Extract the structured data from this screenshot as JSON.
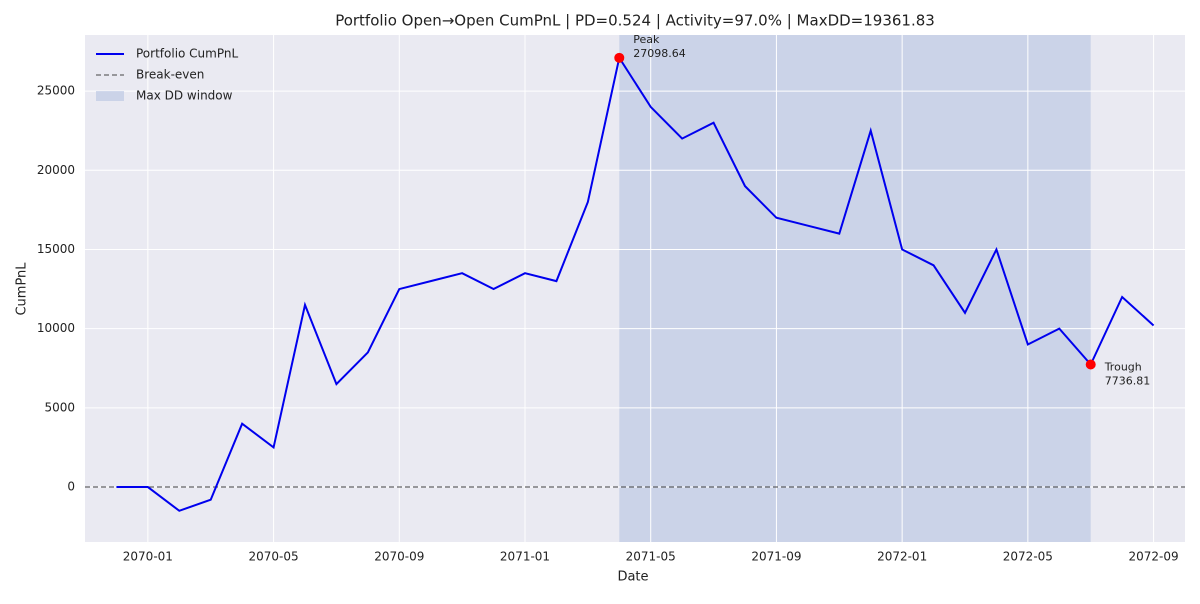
{
  "chart_data": {
    "type": "line",
    "title": "Portfolio Open→Open CumPnL | PD=0.524 | Activity=97.0% | MaxDD=19361.83",
    "x_label": "Date",
    "y_label": "CumPnL",
    "x": [
      "2069-12",
      "2070-01",
      "2070-02",
      "2070-03",
      "2070-04",
      "2070-05",
      "2070-06",
      "2070-07",
      "2070-08",
      "2070-09",
      "2070-10",
      "2070-11",
      "2070-12",
      "2071-01",
      "2071-02",
      "2071-03",
      "2071-04",
      "2071-05",
      "2071-06",
      "2071-07",
      "2071-08",
      "2071-09",
      "2071-10",
      "2071-11",
      "2071-12",
      "2072-01",
      "2072-02",
      "2072-03",
      "2072-04",
      "2072-05",
      "2072-06",
      "2072-07",
      "2072-08",
      "2072-09"
    ],
    "series": [
      {
        "name": "Portfolio CumPnL",
        "color": "#0000ee",
        "values": [
          0,
          0,
          -1500,
          -800,
          4000,
          2500,
          11500,
          6500,
          8500,
          12500,
          13000,
          13500,
          12500,
          13500,
          13000,
          18000,
          27098.64,
          24000,
          22000,
          23000,
          19000,
          17000,
          16500,
          16000,
          22500,
          15000,
          14000,
          11000,
          15000,
          9000,
          10000,
          7736.81,
          12000,
          10200
        ]
      }
    ],
    "break_even": {
      "name": "Break-even",
      "value": 0,
      "color": "#444444"
    },
    "drawdown_window": {
      "name": "Max DD window",
      "color": "#b0c0e0"
    },
    "peak": {
      "label": "Peak",
      "x": "2071-04",
      "value": 27098.64
    },
    "trough": {
      "label": "Trough",
      "x": "2072-07",
      "value": 7736.81
    },
    "marker_color": "#ff0000",
    "xlim": [
      "2069-11",
      "2072-10"
    ],
    "xticks": [
      "2070-01",
      "2070-05",
      "2070-09",
      "2071-01",
      "2071-05",
      "2071-09",
      "2072-01",
      "2072-05",
      "2072-09"
    ],
    "ylim": [
      -3470,
      28540
    ],
    "yticks": [
      0,
      5000,
      10000,
      15000,
      20000,
      25000
    ],
    "grid": true,
    "legend": "upper-left"
  }
}
